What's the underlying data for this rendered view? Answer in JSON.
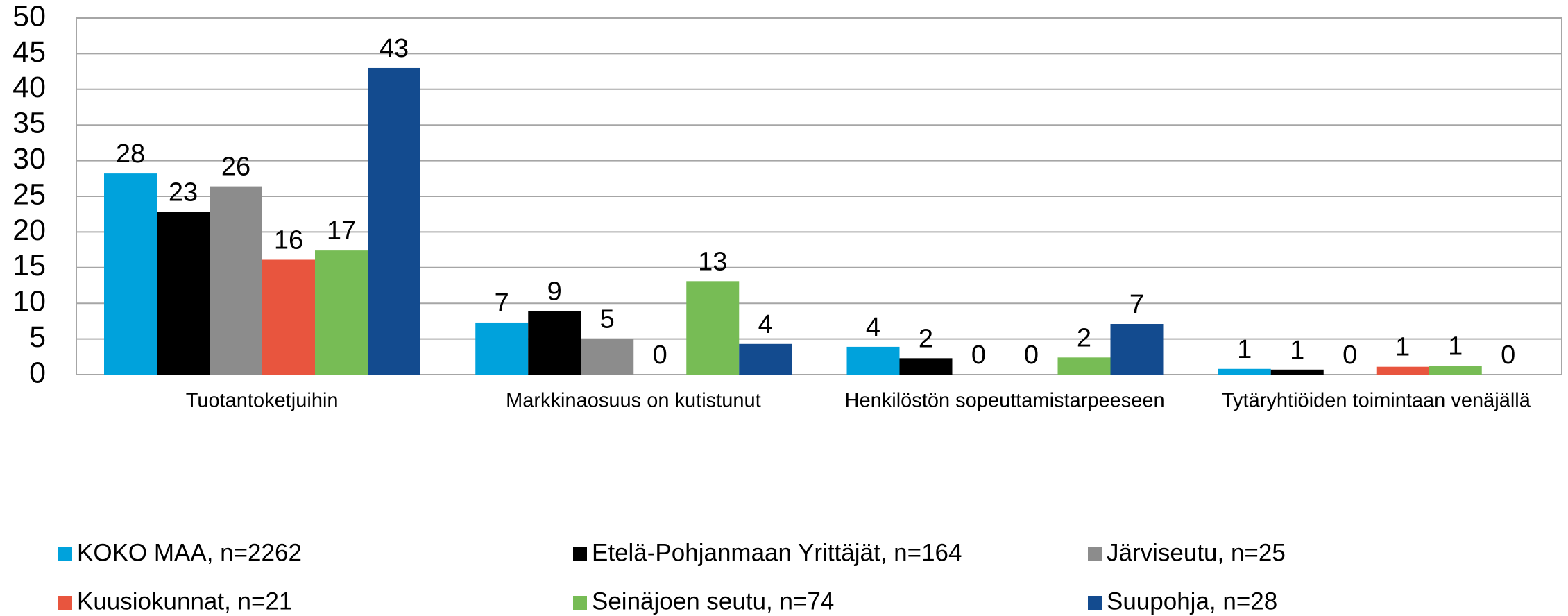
{
  "chart_data": {
    "type": "bar",
    "categories": [
      "Tuotantoketjuihin",
      "Markkinaosuus on kutistunut",
      "Henkilöstön sopeuttamistarpeeseen",
      "Tytäryhtiöiden toimintaan venäjällä"
    ],
    "series": [
      {
        "name": "KOKO MAA, n=2262",
        "color": "#00a2dc",
        "values": [
          28.2,
          7.3,
          3.9,
          0.8
        ],
        "value_labels": [
          "28",
          "7",
          "4",
          "1"
        ]
      },
      {
        "name": "Etelä-Pohjanmaan Yrittäjät, n=164",
        "color": "#000000",
        "values": [
          22.8,
          8.9,
          2.3,
          0.7
        ],
        "value_labels": [
          "23",
          "9",
          "2",
          "1"
        ]
      },
      {
        "name": "Järviseutu, n=25",
        "color": "#8c8c8c",
        "values": [
          26.4,
          5.0,
          0,
          0
        ],
        "value_labels": [
          "26",
          "5",
          "0",
          "0"
        ]
      },
      {
        "name": "Kuusiokunnat, n=21",
        "color": "#e8553e",
        "values": [
          16.1,
          0,
          0,
          1.1
        ],
        "value_labels": [
          "16",
          "0",
          "0",
          "1"
        ]
      },
      {
        "name": "Seinäjoen seutu, n=74",
        "color": "#77bc55",
        "values": [
          17.4,
          13.1,
          2.4,
          1.2
        ],
        "value_labels": [
          "17",
          "13",
          "2",
          "1"
        ]
      },
      {
        "name": "Suupohja, n=28",
        "color": "#134b8f",
        "values": [
          43.0,
          4.3,
          7.1,
          0
        ],
        "value_labels": [
          "43",
          "4",
          "7",
          "0"
        ]
      }
    ],
    "ylim": [
      0,
      50
    ],
    "yticks": [
      0,
      5,
      10,
      15,
      20,
      25,
      30,
      35,
      40,
      45,
      50
    ],
    "grid": true,
    "legend": "bottom"
  }
}
